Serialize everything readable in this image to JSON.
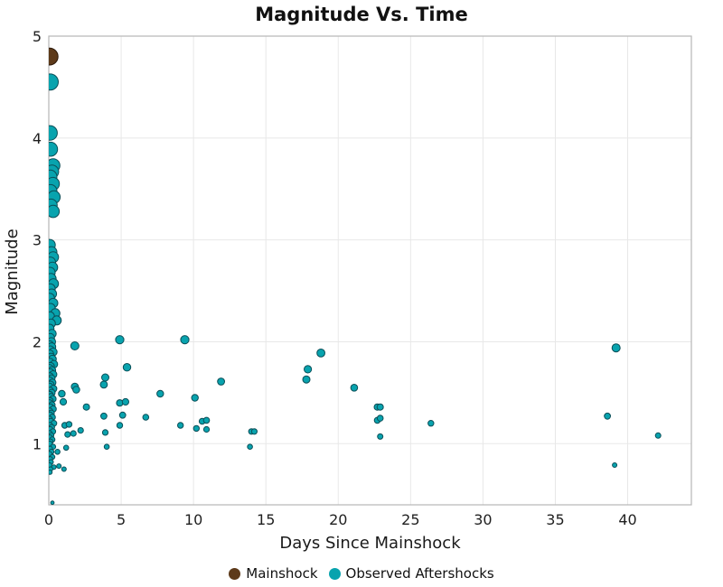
{
  "page": {
    "background": "#ffffff"
  },
  "chart_data": {
    "type": "scatter",
    "title": "Magnitude Vs. Time",
    "xlabel": "Days Since Mainshock",
    "ylabel": "Magnitude",
    "xlim": [
      0,
      44.4
    ],
    "ylim": [
      0.4,
      5.0
    ],
    "x_ticks": [
      0,
      5,
      10,
      15,
      20,
      25,
      30,
      35,
      40
    ],
    "y_ticks": [
      1,
      2,
      3,
      4,
      5
    ],
    "grid": true,
    "grid_color": "#e8e8e8",
    "border_color": "#b6b6b6",
    "legend_position": "bottom-center",
    "marker_size_rule": "radius_px = 1.2 + 1.7 * magnitude",
    "series": [
      {
        "name": "Mainshock",
        "color": "#5d3a1a",
        "edge_color": "#2a1708",
        "points": [
          [
            0.05,
            4.8
          ]
        ]
      },
      {
        "name": "Observed Aftershocks",
        "color": "#08a3ae",
        "edge_color": "#0b4e57",
        "points": [
          [
            0.1,
            4.55
          ],
          [
            0.08,
            4.05
          ],
          [
            0.12,
            3.89
          ],
          [
            0.3,
            3.73
          ],
          [
            0.22,
            3.67
          ],
          [
            0.1,
            3.62
          ],
          [
            0.28,
            3.55
          ],
          [
            0.12,
            3.48
          ],
          [
            0.35,
            3.42
          ],
          [
            0.15,
            3.34
          ],
          [
            0.3,
            3.28
          ],
          [
            0.06,
            2.95
          ],
          [
            0.18,
            2.88
          ],
          [
            0.3,
            2.83
          ],
          [
            0.1,
            2.78
          ],
          [
            0.25,
            2.73
          ],
          [
            0.08,
            2.68
          ],
          [
            0.15,
            2.62
          ],
          [
            0.32,
            2.57
          ],
          [
            0.1,
            2.52
          ],
          [
            0.2,
            2.47
          ],
          [
            0.06,
            2.43
          ],
          [
            0.3,
            2.38
          ],
          [
            0.12,
            2.33
          ],
          [
            0.45,
            2.28
          ],
          [
            0.08,
            2.25
          ],
          [
            0.55,
            2.21
          ],
          [
            0.15,
            2.18
          ],
          [
            0.06,
            2.13
          ],
          [
            0.22,
            2.08
          ],
          [
            0.1,
            2.04
          ],
          [
            0.18,
            2.0
          ],
          [
            0.05,
            1.97
          ],
          [
            0.2,
            1.95
          ],
          [
            0.1,
            1.92
          ],
          [
            0.3,
            1.9
          ],
          [
            0.06,
            1.88
          ],
          [
            0.15,
            1.85
          ],
          [
            0.25,
            1.83
          ],
          [
            0.08,
            1.8
          ],
          [
            0.35,
            1.78
          ],
          [
            0.12,
            1.76
          ],
          [
            0.05,
            1.74
          ],
          [
            0.22,
            1.72
          ],
          [
            0.1,
            1.7
          ],
          [
            0.3,
            1.68
          ],
          [
            0.07,
            1.66
          ],
          [
            0.18,
            1.64
          ],
          [
            0.06,
            1.62
          ],
          [
            0.25,
            1.6
          ],
          [
            0.12,
            1.58
          ],
          [
            0.05,
            1.56
          ],
          [
            0.32,
            1.54
          ],
          [
            0.09,
            1.52
          ],
          [
            0.2,
            1.5
          ],
          [
            0.06,
            1.48
          ],
          [
            0.15,
            1.46
          ],
          [
            0.28,
            1.44
          ],
          [
            0.08,
            1.42
          ],
          [
            0.05,
            1.4
          ],
          [
            0.22,
            1.38
          ],
          [
            0.12,
            1.36
          ],
          [
            0.3,
            1.34
          ],
          [
            0.06,
            1.32
          ],
          [
            0.17,
            1.3
          ],
          [
            0.09,
            1.28
          ],
          [
            0.25,
            1.26
          ],
          [
            0.05,
            1.24
          ],
          [
            0.14,
            1.22
          ],
          [
            0.35,
            1.2
          ],
          [
            0.07,
            1.18
          ],
          [
            0.2,
            1.16
          ],
          [
            0.1,
            1.14
          ],
          [
            0.28,
            1.12
          ],
          [
            0.05,
            1.1
          ],
          [
            0.16,
            1.08
          ],
          [
            0.08,
            1.06
          ],
          [
            0.24,
            1.04
          ],
          [
            0.11,
            1.02
          ],
          [
            0.06,
            1.0
          ],
          [
            0.3,
            0.97
          ],
          [
            0.08,
            0.95
          ],
          [
            0.18,
            0.92
          ],
          [
            0.05,
            0.9
          ],
          [
            0.25,
            0.87
          ],
          [
            0.1,
            0.85
          ],
          [
            0.15,
            0.82
          ],
          [
            0.06,
            0.79
          ],
          [
            0.35,
            0.77
          ],
          [
            0.12,
            0.75
          ],
          [
            0.08,
            0.72
          ],
          [
            0.25,
            0.42
          ],
          [
            0.9,
            1.49
          ],
          [
            1.0,
            1.41
          ],
          [
            1.1,
            1.18
          ],
          [
            1.4,
            1.19
          ],
          [
            1.3,
            1.09
          ],
          [
            1.7,
            1.1
          ],
          [
            1.2,
            0.96
          ],
          [
            0.6,
            0.92
          ],
          [
            0.7,
            0.78
          ],
          [
            1.05,
            0.75
          ],
          [
            1.8,
            1.96
          ],
          [
            1.8,
            1.56
          ],
          [
            1.9,
            1.53
          ],
          [
            2.2,
            1.13
          ],
          [
            2.6,
            1.36
          ],
          [
            3.8,
            1.58
          ],
          [
            3.9,
            1.65
          ],
          [
            3.8,
            1.27
          ],
          [
            3.9,
            1.11
          ],
          [
            4.0,
            0.97
          ],
          [
            4.9,
            2.02
          ],
          [
            4.9,
            1.4
          ],
          [
            5.3,
            1.41
          ],
          [
            5.1,
            1.28
          ],
          [
            4.9,
            1.18
          ],
          [
            5.4,
            1.75
          ],
          [
            6.7,
            1.26
          ],
          [
            7.7,
            1.49
          ],
          [
            9.1,
            1.18
          ],
          [
            9.4,
            2.02
          ],
          [
            10.1,
            1.45
          ],
          [
            10.2,
            1.15
          ],
          [
            10.6,
            1.22
          ],
          [
            10.9,
            1.23
          ],
          [
            10.9,
            1.14
          ],
          [
            11.9,
            1.61
          ],
          [
            13.9,
            0.97
          ],
          [
            14.0,
            1.12
          ],
          [
            14.2,
            1.12
          ],
          [
            17.8,
            1.63
          ],
          [
            17.9,
            1.73
          ],
          [
            18.8,
            1.89
          ],
          [
            21.1,
            1.55
          ],
          [
            22.7,
            1.36
          ],
          [
            22.9,
            1.36
          ],
          [
            22.7,
            1.23
          ],
          [
            22.9,
            1.25
          ],
          [
            22.9,
            1.07
          ],
          [
            26.4,
            1.2
          ],
          [
            38.6,
            1.27
          ],
          [
            39.1,
            0.79
          ],
          [
            39.2,
            1.94
          ],
          [
            42.1,
            1.08
          ]
        ]
      }
    ]
  },
  "legend": {
    "items": [
      {
        "label": "Mainshock",
        "color": "#5d3a1a"
      },
      {
        "label": "Observed Aftershocks",
        "color": "#08a3ae"
      }
    ]
  }
}
